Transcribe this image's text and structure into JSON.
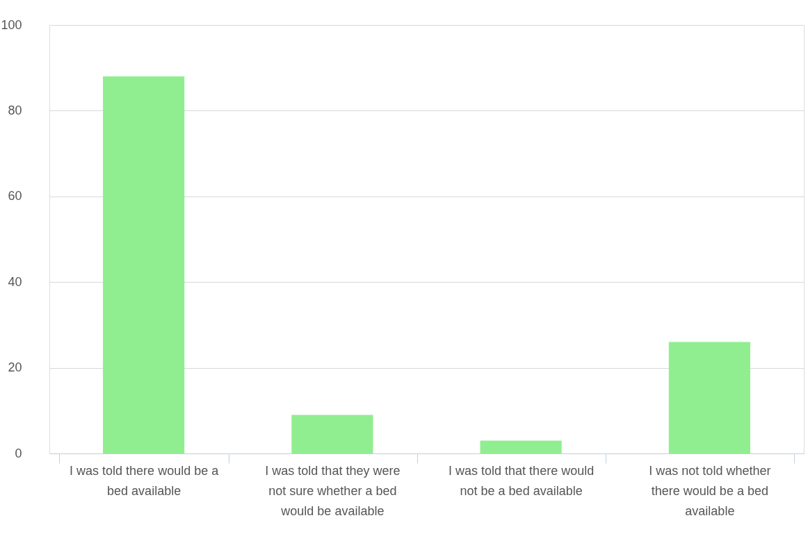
{
  "chart_data": {
    "type": "bar",
    "categories": [
      "I was told there would be a bed available",
      "I was told that they were not sure whether a bed would be available",
      "I was told that there would not be a bed available",
      "I was not told whether there would be a bed available"
    ],
    "values": [
      88,
      9,
      3,
      26
    ],
    "color": "#90ee90",
    "ylim": [
      0,
      100
    ],
    "yticks": [
      0,
      20,
      40,
      60,
      80,
      100
    ],
    "grid": "y"
  }
}
